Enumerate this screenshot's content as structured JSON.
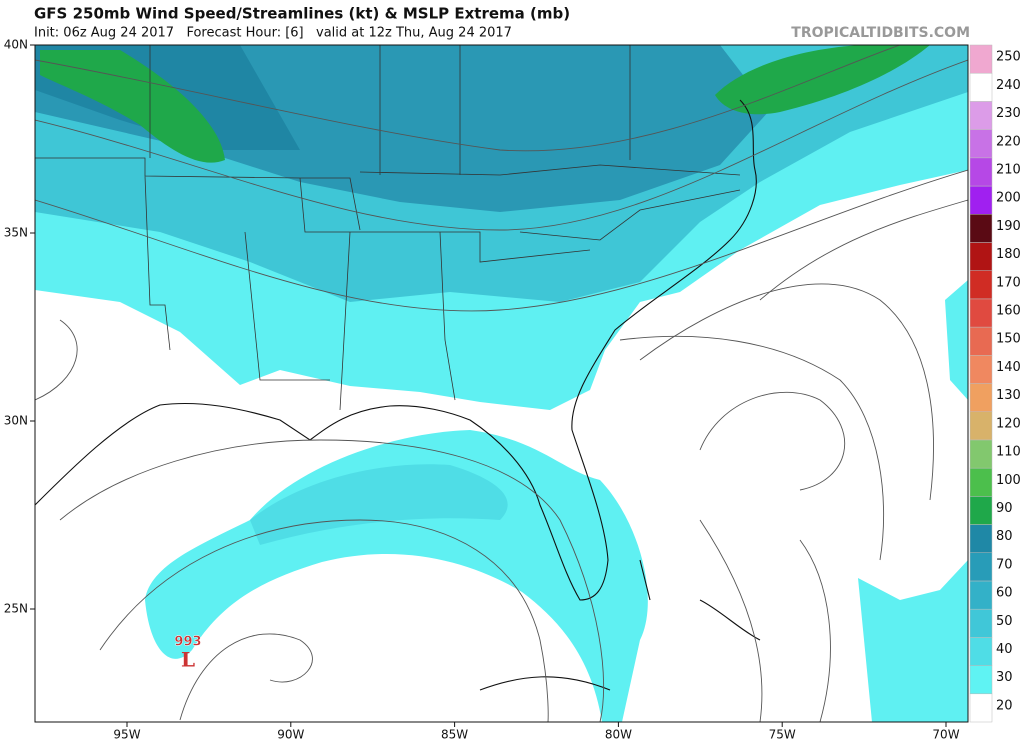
{
  "header": {
    "title": "GFS 250mb Wind Speed/Streamlines (kt) & MSLP Extrema (mb)",
    "subtitle": "Init: 06z Aug 24 2017   Forecast Hour: [6]   valid at 12z Thu, Aug 24 2017",
    "site": "TROPICALTIDBITS.COM"
  },
  "map": {
    "lat_labels": [
      "40N",
      "35N",
      "30N",
      "25N"
    ],
    "lon_labels": [
      "95W",
      "90W",
      "85W",
      "80W",
      "75W",
      "70W"
    ],
    "pressure_label": "993",
    "low_symbol": "L"
  },
  "colorbar": {
    "ticks": [
      20,
      30,
      40,
      50,
      60,
      70,
      80,
      90,
      100,
      110,
      120,
      130,
      140,
      150,
      160,
      170,
      180,
      190,
      200,
      210,
      220,
      230,
      240,
      250
    ],
    "colors": [
      "#ffffff",
      "#5ff3f3",
      "#4fdde6",
      "#40c7d8",
      "#33b1c8",
      "#289cb8",
      "#1f88a6",
      "#1fa84a",
      "#4cbf4c",
      "#82c86e",
      "#d8b26a",
      "#f0a060",
      "#f08860",
      "#e86a52",
      "#e04a40",
      "#d02c24",
      "#b01414",
      "#5a0a14",
      "#a020f0",
      "#b648e6",
      "#c872e6",
      "#dc9ce8",
      "#ffffff",
      "#f0a8d0"
    ]
  }
}
